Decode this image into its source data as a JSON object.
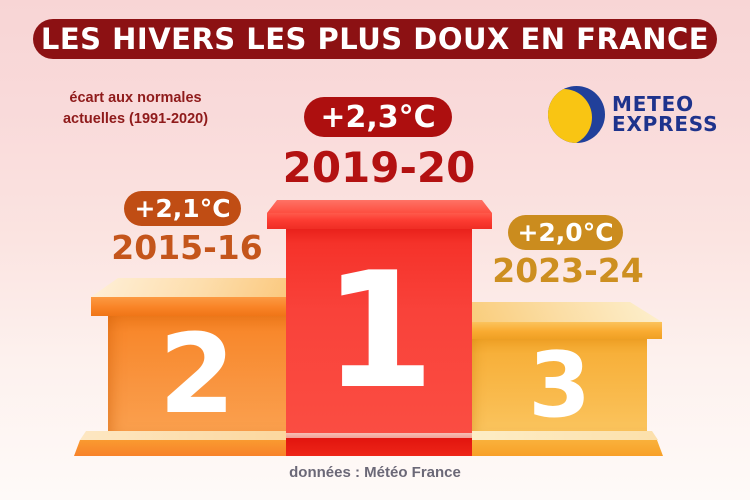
{
  "title": "LES HIVERS LES PLUS DOUX EN FRANCE",
  "subtitle": {
    "line1": "écart aux normales",
    "line2": "actuelles (1991-2020)"
  },
  "logo": {
    "line1": "METEO",
    "line2": "EXPRESS"
  },
  "footer": "données : Météo France",
  "podiums": [
    {
      "rank": "1",
      "season": "2019-20",
      "anomaly": "+2,3°C"
    },
    {
      "rank": "2",
      "season": "2015-16",
      "anomaly": "+2,1°C"
    },
    {
      "rank": "3",
      "season": "2023-24",
      "anomaly": "+2,0°C"
    }
  ],
  "colors": {
    "background_top": "#f8d5d5",
    "background_bottom": "#fefaf8",
    "banner_bg": "#8c1113",
    "banner_text": "#ffffff",
    "subtitle_text": "#8f1b1b",
    "podium1_red": "#f9423a",
    "podium2_orange": "#f99540",
    "podium3_amber": "#f9bb4e",
    "pill1_bg": "#ad0f0f",
    "pill2_bg": "#c04d14",
    "pill3_bg": "#cb8c1e",
    "season1_text": "#b31111",
    "season2_text": "#c4551b",
    "season3_text": "#cd8f20",
    "logo_yellow": "#f9c513",
    "logo_navy": "#21409a",
    "footer_text": "#6b6877"
  },
  "chart_data": {
    "type": "bar",
    "subtype": "podium-ranking",
    "title": "LES HIVERS LES PLUS DOUX EN FRANCE",
    "subtitle": "écart aux normales actuelles (1991-2020)",
    "categories": [
      "2019-20",
      "2015-16",
      "2023-24"
    ],
    "values": [
      2.3,
      2.1,
      2.0
    ],
    "value_labels": [
      "+2,3°C",
      "+2,1°C",
      "+2,0°C"
    ],
    "ranks": [
      1,
      2,
      3
    ],
    "unit": "°C",
    "source": "données : Météo France",
    "grid": false,
    "legend_position": "none"
  }
}
